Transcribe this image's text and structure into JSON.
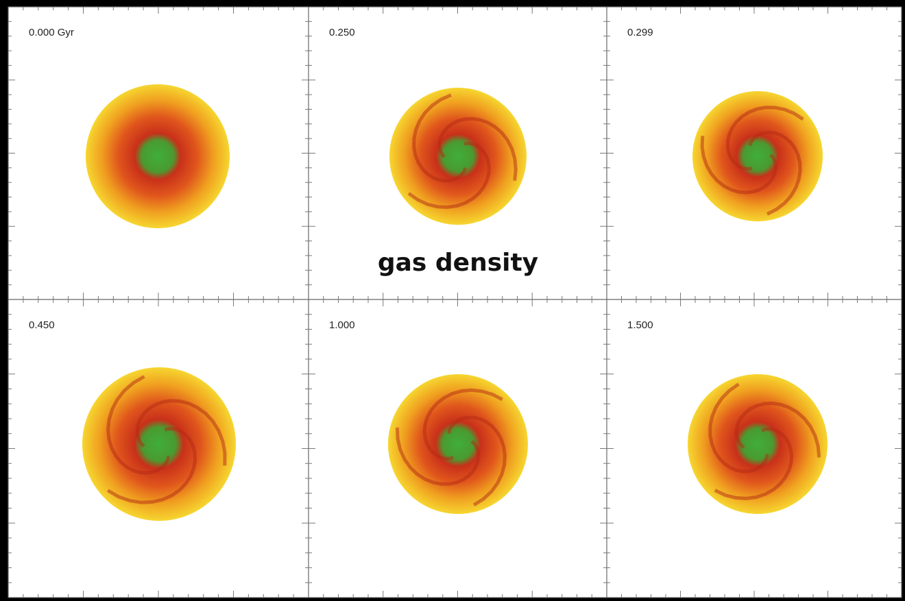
{
  "panels": [
    {
      "label": "0.000 Gyr"
    },
    {
      "label": "0.250"
    },
    {
      "label": "0.299"
    },
    {
      "label": "0.450"
    },
    {
      "label": "1.000"
    },
    {
      "label": "1.500"
    }
  ],
  "caption": "gas density"
}
